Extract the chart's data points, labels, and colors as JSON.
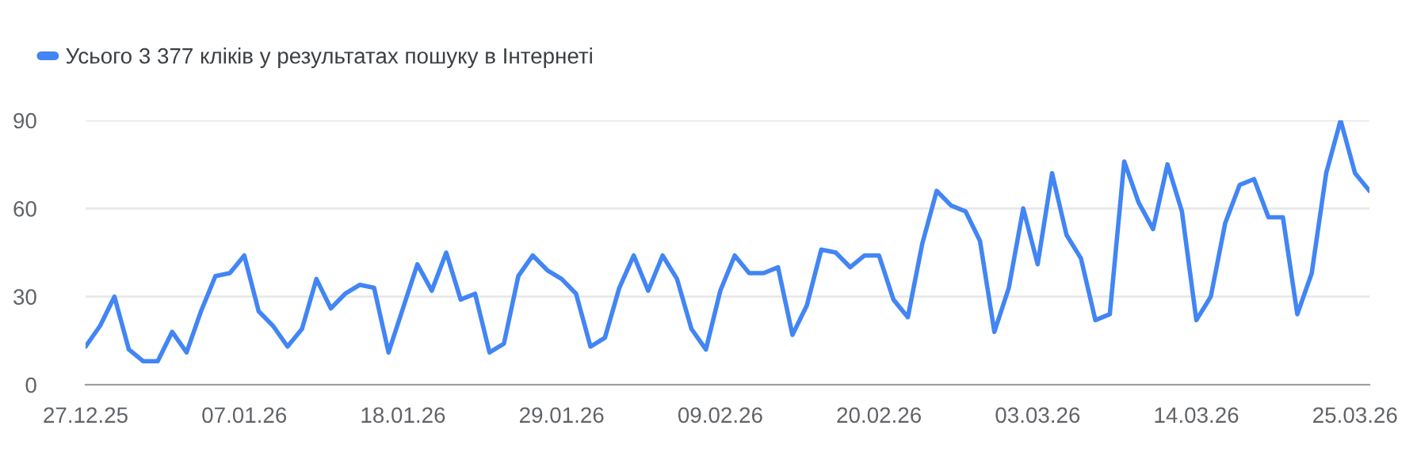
{
  "chart_data": {
    "type": "line",
    "categories": [
      "27.12.25",
      null,
      null,
      null,
      null,
      null,
      null,
      null,
      null,
      null,
      null,
      "07.01.26",
      null,
      null,
      null,
      null,
      null,
      null,
      null,
      null,
      null,
      null,
      "18.01.26",
      null,
      null,
      null,
      null,
      null,
      null,
      null,
      null,
      null,
      null,
      "29.01.26",
      null,
      null,
      null,
      null,
      null,
      null,
      null,
      null,
      null,
      null,
      "09.02.26",
      null,
      null,
      null,
      null,
      null,
      null,
      null,
      null,
      null,
      null,
      "20.02.26",
      null,
      null,
      null,
      null,
      null,
      null,
      null,
      null,
      null,
      null,
      "03.03.26",
      null,
      null,
      null,
      null,
      null,
      null,
      null,
      null,
      null,
      null,
      "14.03.26",
      null,
      null,
      null,
      null,
      null,
      null,
      null,
      null,
      null,
      null,
      "25.03.26",
      null
    ],
    "series": [
      {
        "name": "Усього 3 377 кліків у результатах пошуку в Інтернеті",
        "color": "#4285f4",
        "values": [
          13,
          20,
          30,
          12,
          8,
          8,
          18,
          11,
          25,
          37,
          38,
          44,
          25,
          20,
          13,
          19,
          36,
          26,
          31,
          34,
          33,
          11,
          26,
          41,
          32,
          45,
          29,
          31,
          11,
          14,
          37,
          44,
          39,
          36,
          31,
          13,
          16,
          33,
          44,
          32,
          44,
          36,
          19,
          12,
          32,
          44,
          38,
          38,
          40,
          17,
          27,
          46,
          45,
          40,
          44,
          44,
          29,
          23,
          48,
          66,
          61,
          59,
          49,
          18,
          33,
          60,
          41,
          72,
          51,
          43,
          22,
          24,
          76,
          62,
          53,
          75,
          59,
          22,
          30,
          55,
          68,
          70,
          57,
          57,
          24,
          38,
          72,
          90,
          72,
          66
        ]
      }
    ],
    "ylim": [
      0,
      90
    ],
    "yticks": [
      0,
      30,
      60,
      90
    ],
    "grid": "y",
    "legend": "top left",
    "marker": "none",
    "line_style": "solid"
  }
}
